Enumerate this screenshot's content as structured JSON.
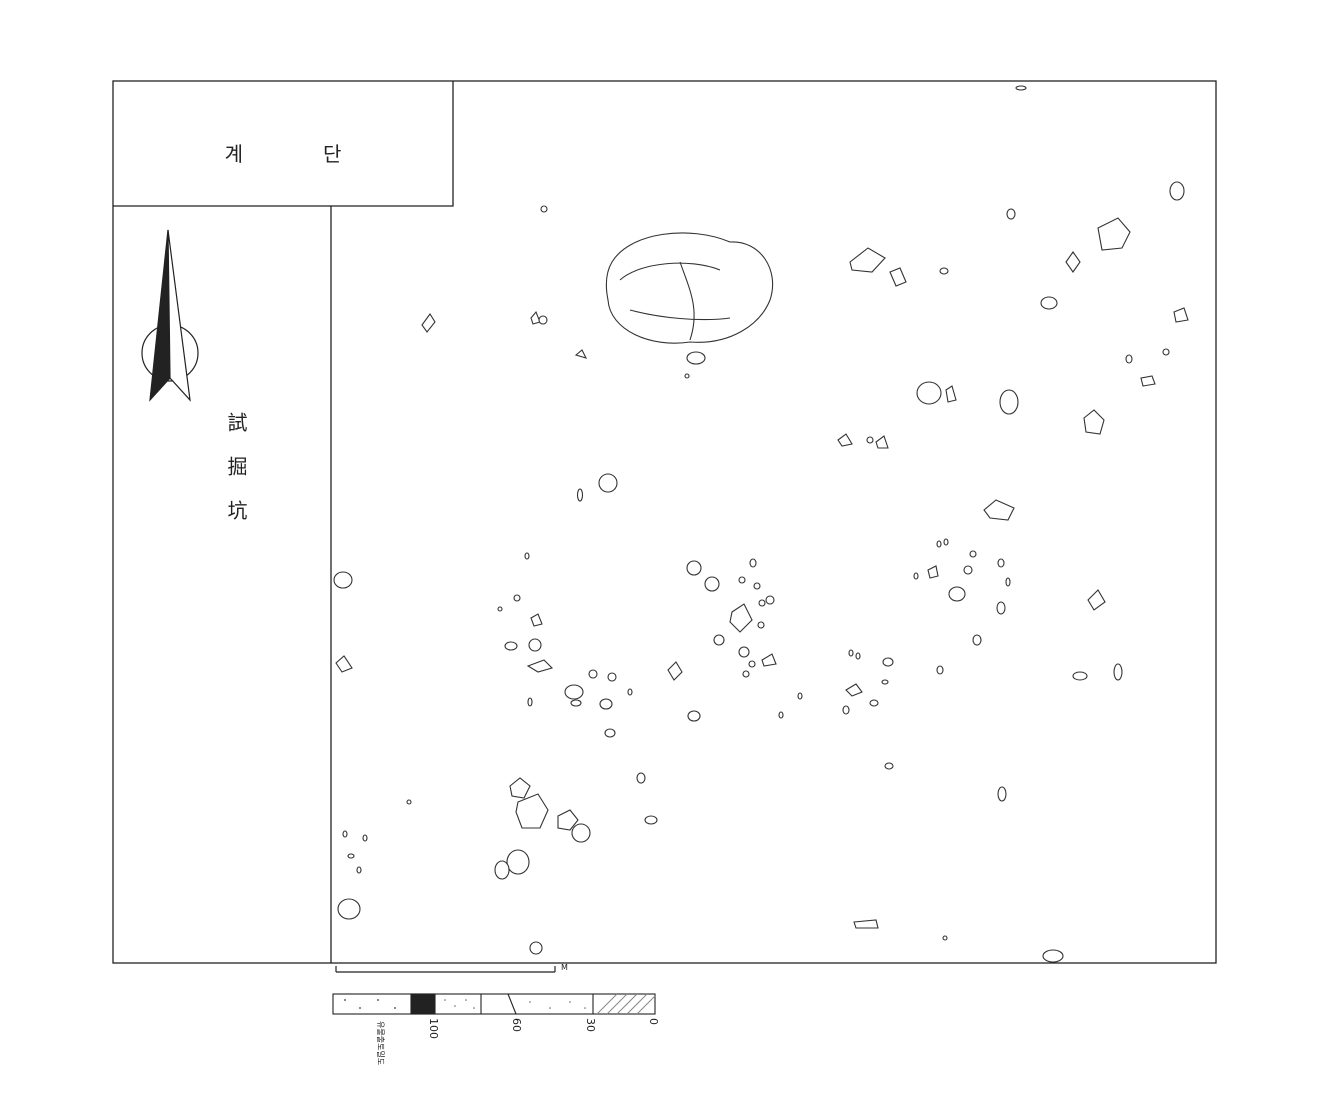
{
  "plan": {
    "step_label": "계단",
    "trench_label": "試掘坑",
    "scale_unit": "M"
  },
  "legend": {
    "ticks": [
      "100",
      "60",
      "30",
      "0"
    ],
    "note": "유물출토밀도"
  }
}
